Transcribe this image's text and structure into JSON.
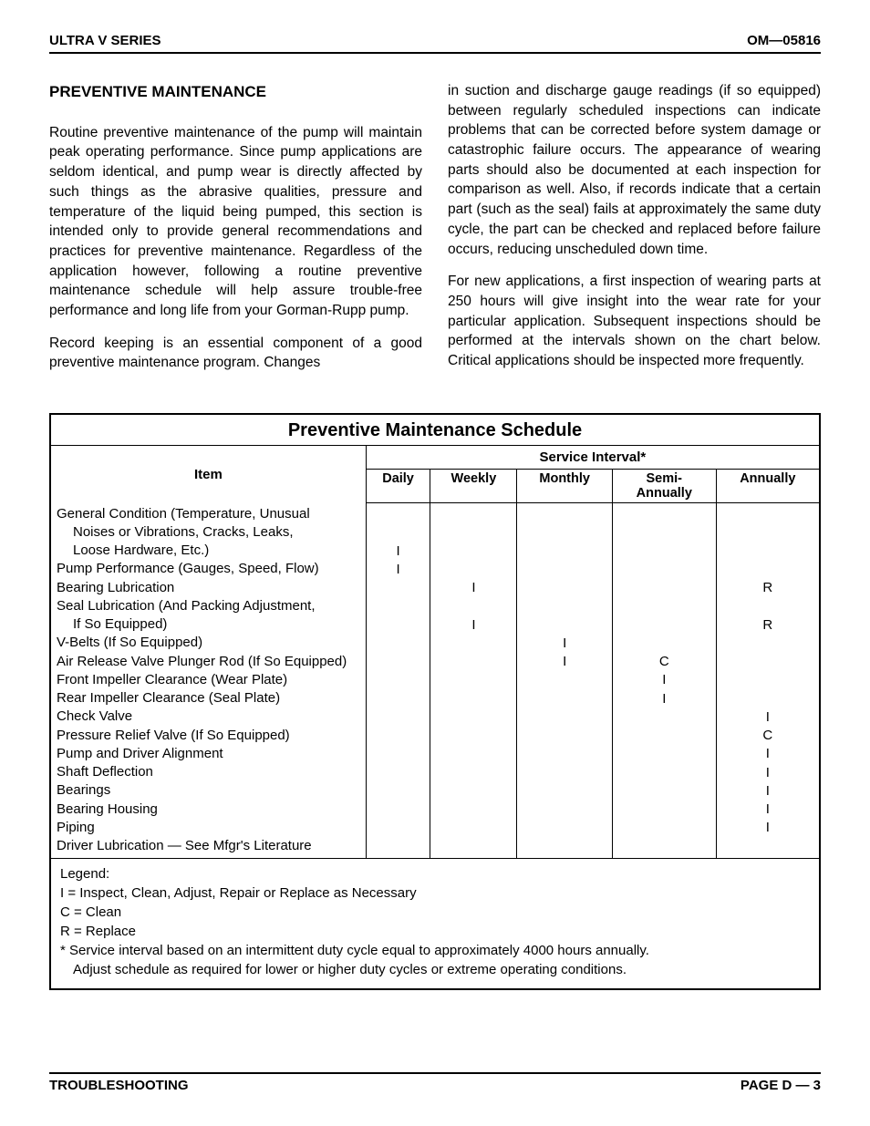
{
  "header": {
    "left": "ULTRA V SERIES",
    "right": "OM—05816"
  },
  "section_title": "PREVENTIVE MAINTENANCE",
  "paras": {
    "p1": "Routine preventive maintenance of the pump will maintain peak operating performance. Since pump applications are seldom identical, and pump wear is directly affected by such things as the abrasive qualities, pressure and temperature of the liquid being pumped, this section is intended only to provide general recommendations and practices for preventive maintenance. Regardless of the application however, following a routine preventive maintenance schedule will help assure trouble-free performance and long life from your Gorman-Rupp pump.",
    "p2": "Record keeping is an essential component of a good preventive maintenance program. Changes",
    "p3": "in suction and discharge gauge readings (if so equipped) between regularly scheduled inspections can indicate problems that can be corrected before system damage or catastrophic failure occurs. The appearance of wearing parts should also be documented at each inspection for comparison as well. Also, if records indicate that a certain part (such as the seal) fails at approximately the same duty cycle, the part can be checked and replaced before failure occurs, reducing unscheduled down time.",
    "p4": "For new applications, a first inspection of wearing parts at 250 hours will give insight into the wear rate for your particular application. Subsequent inspections should be performed at the intervals shown on the chart below. Critical applications should be inspected more frequently."
  },
  "schedule": {
    "title": "Preventive Maintenance Schedule",
    "item_header": "Item",
    "interval_header": "Service Interval*",
    "columns": [
      "Daily",
      "Weekly",
      "Monthly",
      "Semi-\nAnnually",
      "Annually"
    ],
    "rows": [
      {
        "item": "General Condition (Temperature, Unusual",
        "indent": false,
        "marks": [
          "",
          "",
          "",
          "",
          ""
        ]
      },
      {
        "item": "Noises or Vibrations, Cracks, Leaks,",
        "indent": true,
        "marks": [
          "",
          "",
          "",
          "",
          ""
        ]
      },
      {
        "item": "Loose Hardware, Etc.)",
        "indent": true,
        "marks": [
          "I",
          "",
          "",
          "",
          ""
        ]
      },
      {
        "item": "Pump Performance (Gauges, Speed, Flow)",
        "indent": false,
        "marks": [
          "I",
          "",
          "",
          "",
          ""
        ]
      },
      {
        "item": "Bearing Lubrication",
        "indent": false,
        "marks": [
          "",
          "I",
          "",
          "",
          "R"
        ]
      },
      {
        "item": "Seal Lubrication (And Packing Adjustment,",
        "indent": false,
        "marks": [
          "",
          "",
          "",
          "",
          ""
        ]
      },
      {
        "item": "If So Equipped)",
        "indent": true,
        "marks": [
          "",
          "I",
          "",
          "",
          "R"
        ]
      },
      {
        "item": "V-Belts (If So Equipped)",
        "indent": false,
        "marks": [
          "",
          "",
          "I",
          "",
          ""
        ]
      },
      {
        "item": "Air Release Valve Plunger Rod (If So Equipped)",
        "indent": false,
        "marks": [
          "",
          "",
          "I",
          "C",
          ""
        ]
      },
      {
        "item": "Front Impeller Clearance (Wear Plate)",
        "indent": false,
        "marks": [
          "",
          "",
          "",
          "I",
          ""
        ]
      },
      {
        "item": "Rear Impeller Clearance (Seal Plate)",
        "indent": false,
        "marks": [
          "",
          "",
          "",
          "I",
          ""
        ]
      },
      {
        "item": "Check Valve",
        "indent": false,
        "marks": [
          "",
          "",
          "",
          "",
          "I"
        ]
      },
      {
        "item": "Pressure Relief Valve (If So Equipped)",
        "indent": false,
        "marks": [
          "",
          "",
          "",
          "",
          "C"
        ]
      },
      {
        "item": "Pump and Driver Alignment",
        "indent": false,
        "marks": [
          "",
          "",
          "",
          "",
          "I"
        ]
      },
      {
        "item": "Shaft Deflection",
        "indent": false,
        "marks": [
          "",
          "",
          "",
          "",
          "I"
        ]
      },
      {
        "item": "Bearings",
        "indent": false,
        "marks": [
          "",
          "",
          "",
          "",
          "I"
        ]
      },
      {
        "item": "Bearing Housing",
        "indent": false,
        "marks": [
          "",
          "",
          "",
          "",
          "I"
        ]
      },
      {
        "item": "Piping",
        "indent": false,
        "marks": [
          "",
          "",
          "",
          "",
          "I"
        ]
      },
      {
        "item": "Driver Lubrication — See Mfgr's Literature",
        "indent": false,
        "marks": [
          "",
          "",
          "",
          "",
          ""
        ]
      }
    ],
    "legend": {
      "title": "Legend:",
      "l1": "I = Inspect, Clean, Adjust, Repair or Replace as Necessary",
      "l2": "C = Clean",
      "l3": "R = Replace",
      "foot1": "* Service interval based on an intermittent duty cycle equal to approximately 4000 hours annually.",
      "foot2": "Adjust schedule as required for lower or higher duty cycles or extreme operating conditions."
    }
  },
  "footer": {
    "left": "TROUBLESHOOTING",
    "right": "PAGE D — 3"
  }
}
